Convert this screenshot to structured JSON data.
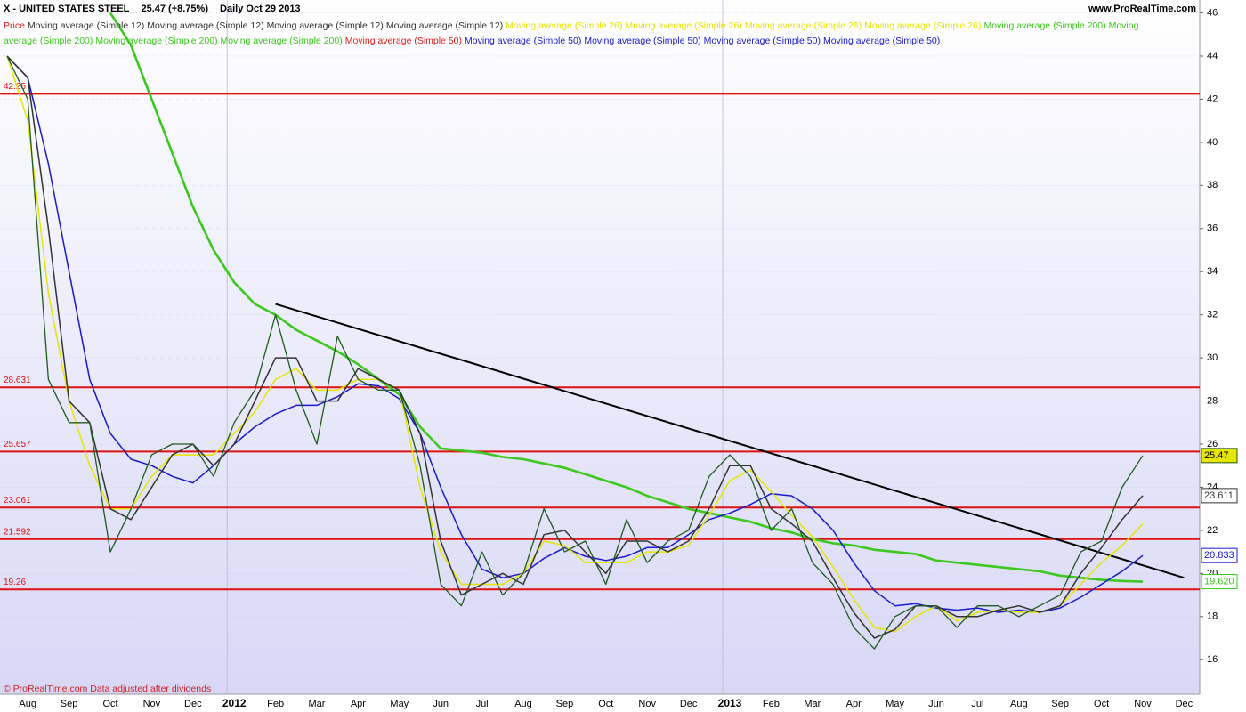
{
  "chart_data": {
    "type": "line",
    "title": "X - UNITED STATES STEEL",
    "subtitle": "25.47 (+8.75%)",
    "period": "Daily  Oct 29 2013",
    "site": "www.ProRealTime.com",
    "footer": "© ProRealTime.com  Data adjusted after dividends",
    "legend": [
      {
        "text": "Price",
        "color": "#e02020"
      },
      {
        "text": "Moving average (Simple 12)",
        "color": "#333333"
      },
      {
        "text": "Moving average (Simple 12)",
        "color": "#333333"
      },
      {
        "text": "Moving average (Simple 12)",
        "color": "#333333"
      },
      {
        "text": "Moving average (Simple 12)",
        "color": "#333333"
      },
      {
        "text": "Moving average (Simple 26)",
        "color": "#e6e600"
      },
      {
        "text": "Moving average (Simple 26)",
        "color": "#e6e600"
      },
      {
        "text": "Moving average (Simple 26)",
        "color": "#e6e600"
      },
      {
        "text": "Moving average (Simple 26)",
        "color": "#e6e600"
      },
      {
        "text": "Moving average (Simple 200)",
        "color": "#3cc81e"
      },
      {
        "text": "Moving average (Simple 200)",
        "color": "#3cc81e"
      },
      {
        "text": "Moving average (Simple 200)",
        "color": "#3cc81e"
      },
      {
        "text": "Moving average (Simple 200)",
        "color": "#3cc81e"
      },
      {
        "text": "Moving average (Simple 50)",
        "color": "#e02020"
      },
      {
        "text": "Moving average (Simple 50)",
        "color": "#1a1acc"
      },
      {
        "text": "Moving average (Simple 50)",
        "color": "#1a1acc"
      },
      {
        "text": "Moving average (Simple 50)",
        "color": "#1a1acc"
      },
      {
        "text": "Moving average (Simple 50)",
        "color": "#1a1acc"
      }
    ],
    "categories": [
      null,
      "Aug",
      null,
      "Sep",
      null,
      "Oct",
      null,
      "Nov",
      null,
      "Dec",
      null,
      "2012",
      null,
      "Feb",
      null,
      "Mar",
      null,
      "Apr",
      null,
      "May",
      null,
      "Jun",
      null,
      "Jul",
      null,
      "Aug",
      null,
      "Sep",
      null,
      "Oct",
      null,
      "Nov",
      null,
      "Dec",
      null,
      "2013",
      null,
      "Feb",
      null,
      "Mar",
      null,
      "Apr",
      null,
      "May",
      null,
      "Jun",
      null,
      "Jul",
      null,
      "Aug",
      null,
      "Sep",
      null,
      "Oct",
      null,
      "Nov",
      null,
      "Dec"
    ],
    "series": [
      {
        "name": "Moving average (Simple 200)",
        "color": "#3cc81e",
        "values": [
          null,
          null,
          null,
          null,
          null,
          46,
          44.5,
          42,
          39.5,
          37,
          35,
          33.5,
          32.5,
          32,
          31.3,
          30.8,
          30.3,
          29.7,
          29,
          28.3,
          26.8,
          25.8,
          25.7,
          25.6,
          25.4,
          25.3,
          25.1,
          24.9,
          24.6,
          24.3,
          24,
          23.6,
          23.3,
          23,
          22.8,
          22.6,
          22.4,
          22.1,
          21.9,
          21.6,
          21.4,
          21.3,
          21.1,
          21,
          20.9,
          20.6,
          20.5,
          20.4,
          20.3,
          20.2,
          20.1,
          19.9,
          19.8,
          19.7,
          19.65,
          19.62,
          null,
          null
        ],
        "value_labels": [
          null,
          null,
          null,
          null,
          null,
          null,
          null,
          null,
          null,
          null,
          null,
          null,
          null,
          null,
          null,
          null,
          null,
          null,
          null,
          null,
          null,
          null,
          null,
          null,
          null,
          null,
          null,
          null,
          null,
          null,
          null,
          null,
          null,
          null,
          null,
          null,
          null,
          null,
          null,
          null,
          null,
          null,
          null,
          null,
          null,
          null,
          null,
          null,
          null,
          null,
          null,
          null,
          null,
          null,
          null,
          "19.620",
          null,
          null
        ]
      },
      {
        "name": "Moving average (Simple 50)",
        "color": "#1a1acc",
        "values": [
          44,
          43,
          39,
          34,
          29,
          26.5,
          25.3,
          25,
          24.5,
          24.2,
          25,
          26,
          26.8,
          27.4,
          27.8,
          27.8,
          28.2,
          28.8,
          28.7,
          28.1,
          26.5,
          24,
          21.8,
          20.2,
          19.8,
          20,
          20.7,
          21.2,
          20.8,
          20.6,
          20.8,
          21.2,
          21.2,
          21.8,
          22.5,
          22.8,
          23.2,
          23.7,
          23.6,
          23,
          22,
          20.5,
          19.2,
          18.5,
          18.6,
          18.4,
          18.3,
          18.4,
          18.2,
          18.3,
          18.2,
          18.4,
          18.9,
          19.5,
          20.1,
          20.833,
          null,
          null
        ]
      },
      {
        "name": "Moving average (Simple 26)",
        "color": "#e6e600",
        "values": [
          44,
          41,
          33,
          28,
          25,
          23,
          23,
          24.5,
          25.5,
          25.5,
          25.5,
          26.5,
          27.5,
          29,
          29.5,
          28.5,
          28.5,
          29,
          29,
          28.5,
          24,
          21,
          19.5,
          19.5,
          19.5,
          20,
          21.5,
          21.3,
          20.5,
          20.5,
          20.5,
          21,
          21,
          21.3,
          22.7,
          24.3,
          24.8,
          23.8,
          22.7,
          21.7,
          20.3,
          18.8,
          17.5,
          17.3,
          18,
          18.5,
          17.8,
          18.2,
          18.3,
          18.2,
          18.2,
          18.5,
          19.5,
          20.5,
          21.3,
          22.3,
          null,
          null
        ]
      },
      {
        "name": "Moving average (Simple 12)",
        "color": "#333333",
        "values": [
          44,
          43,
          36,
          28,
          27,
          23,
          22.5,
          24,
          25.5,
          26,
          25,
          26,
          28,
          30,
          30,
          28,
          28,
          29.5,
          29,
          28.5,
          26.5,
          21.5,
          19,
          19.5,
          20,
          19.5,
          21.8,
          22,
          21,
          20,
          21.5,
          21.5,
          21,
          21.5,
          23,
          25,
          25,
          23,
          22.3,
          21.5,
          19.8,
          18.2,
          17,
          17.4,
          18.5,
          18.5,
          18,
          18,
          18.3,
          18.5,
          18.2,
          18.5,
          20,
          21.2,
          22.5,
          23.611,
          null,
          null
        ]
      },
      {
        "name": "Price",
        "color": "#1f5a1f",
        "values": [
          44,
          42,
          29,
          27,
          27,
          21,
          23,
          25.5,
          26,
          26,
          24.5,
          27,
          28.5,
          32,
          28.5,
          26,
          31,
          29,
          28.5,
          28.5,
          25,
          19.5,
          18.5,
          21,
          19,
          20,
          23,
          21,
          21.5,
          19.5,
          22.5,
          20.5,
          21.5,
          22,
          24.5,
          25.5,
          24.5,
          22,
          23,
          20.5,
          19.5,
          17.5,
          16.5,
          18,
          18.5,
          18.5,
          17.5,
          18.5,
          18.5,
          18,
          18.5,
          19,
          21,
          21.5,
          24,
          25.47,
          null,
          null
        ]
      }
    ],
    "levels": [
      42.25,
      28.631,
      25.657,
      23.061,
      21.592,
      19.26
    ],
    "level_color": "#e01010",
    "trendline": {
      "x": [
        13,
        57
      ],
      "values": [
        32.5,
        19.8
      ],
      "color": "#000000"
    },
    "ylim": [
      14.4,
      46.6
    ],
    "yticks": [
      16,
      18,
      20,
      22,
      24,
      26,
      28,
      30,
      32,
      34,
      36,
      38,
      40,
      42,
      44,
      46
    ],
    "grid": true
  }
}
